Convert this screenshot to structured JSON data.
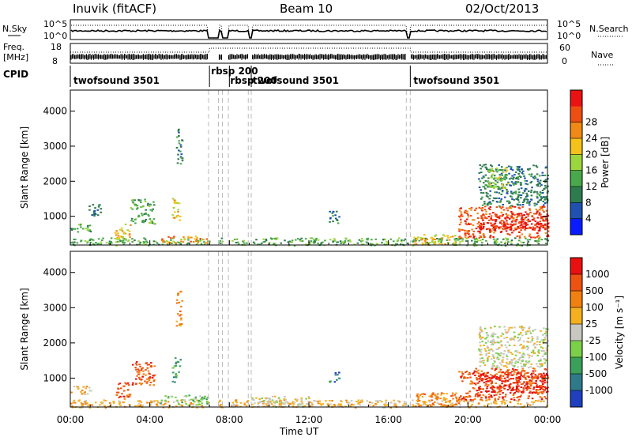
{
  "header": {
    "station": "Inuvik (fitACF)",
    "beam": "Beam 10",
    "date": "02/Oct/2013"
  },
  "strips": {
    "nsky_label": "N.Sky",
    "nsearch_label": "N.Search",
    "nsky_ticks": [
      "10^5",
      "10^0"
    ],
    "nsearch_ticks": [
      "10^5",
      "10^0"
    ],
    "freq_label": "Freq.",
    "freq_unit": "[MHz]",
    "freq_ticks": [
      "18",
      "8"
    ],
    "nave_label": "Nave",
    "nave_ticks": [
      "60",
      "0"
    ],
    "cpid_label": "CPID",
    "cpid_segments": [
      {
        "label": "twofsound 3501",
        "start_hour": 0.0,
        "end_hour": 7.0
      },
      {
        "label": "rbsp 200",
        "start_hour": 7.0,
        "end_hour": 8.0
      },
      {
        "label": "rbsp 200",
        "start_hour": 8.0,
        "end_hour": 9.1
      },
      {
        "label": "twofsound 3501",
        "start_hour": 9.1,
        "end_hour": 17.1
      },
      {
        "label": "twofsound 3501",
        "start_hour": 17.1,
        "end_hour": 24.0
      }
    ],
    "data_gaps_hours": [
      [
        6.95,
        7.45
      ],
      [
        7.65,
        7.95
      ],
      [
        8.95,
        9.1
      ],
      [
        16.9,
        17.1
      ]
    ]
  },
  "chart_data": [
    {
      "type": "heatmap",
      "title": "",
      "ylabel": "Slant Range [km]",
      "xlabel": "",
      "xlim": [
        0,
        24
      ],
      "ylim": [
        180,
        4600
      ],
      "yticks": [
        1000,
        2000,
        3000,
        4000
      ],
      "colorbar": {
        "label": "Power [dB]",
        "ticks": [
          "4",
          "8",
          "12",
          "16",
          "20",
          "24",
          "28"
        ],
        "colors": [
          "#0a1cff",
          "#1f52b0",
          "#2e7b4f",
          "#49a84b",
          "#9cd63d",
          "#f5c21b",
          "#f08a16",
          "#ee4e12",
          "#ea1212"
        ]
      },
      "echo_regions": [
        {
          "x": [
            0.0,
            1.0
          ],
          "range_km": [
            550,
            800
          ],
          "level": 3
        },
        {
          "x": [
            0.9,
            1.5
          ],
          "range_km": [
            1000,
            1400
          ],
          "level": 2
        },
        {
          "x": [
            2.2,
            3.0
          ],
          "range_km": [
            350,
            800
          ],
          "level": 5
        },
        {
          "x": [
            3.0,
            4.2
          ],
          "range_km": [
            800,
            1500
          ],
          "level": 3
        },
        {
          "x": [
            5.1,
            5.5
          ],
          "range_km": [
            900,
            1600
          ],
          "level": 5
        },
        {
          "x": [
            5.3,
            5.6
          ],
          "range_km": [
            2500,
            3500
          ],
          "level": 2
        },
        {
          "x": [
            0.0,
            24.0
          ],
          "range_km": [
            180,
            400
          ],
          "level": 3
        },
        {
          "x": [
            4.5,
            6.9
          ],
          "range_km": [
            250,
            450
          ],
          "level": 6
        },
        {
          "x": [
            13.0,
            13.5
          ],
          "range_km": [
            800,
            1200
          ],
          "level": 2
        },
        {
          "x": [
            17.2,
            19.5
          ],
          "range_km": [
            200,
            500
          ],
          "level": 5
        },
        {
          "x": [
            19.5,
            24.0
          ],
          "range_km": [
            400,
            1300
          ],
          "level": 7
        },
        {
          "x": [
            20.5,
            24.0
          ],
          "range_km": [
            600,
            1100
          ],
          "level": 8
        },
        {
          "x": [
            20.5,
            24.0
          ],
          "range_km": [
            1300,
            2500
          ],
          "level": 2
        },
        {
          "x": [
            21.0,
            22.0
          ],
          "range_km": [
            1800,
            2400
          ],
          "level": 4
        }
      ]
    },
    {
      "type": "heatmap",
      "title": "",
      "ylabel": "Slant Range [km]",
      "xlabel": "Time UT",
      "xlim": [
        0,
        24
      ],
      "ylim": [
        180,
        4600
      ],
      "xticks": [
        "00:00",
        "04:00",
        "08:00",
        "12:00",
        "16:00",
        "20:00",
        "00:00"
      ],
      "yticks": [
        1000,
        2000,
        3000,
        4000
      ],
      "colorbar": {
        "label": "Velocity [m s⁻¹]",
        "ticks": [
          "1000",
          "500",
          "100",
          "25",
          "-25",
          "-100",
          "-500",
          "-1000"
        ],
        "colors": [
          "#1f3fbf",
          "#2f7a8a",
          "#3aa05a",
          "#7bd04a",
          "#c8c8c0",
          "#f5b020",
          "#f28010",
          "#ee5210",
          "#ea1010"
        ]
      },
      "echo_regions": [
        {
          "x": [
            0.0,
            1.0
          ],
          "range_km": [
            550,
            800
          ],
          "level": 5
        },
        {
          "x": [
            2.2,
            3.0
          ],
          "range_km": [
            400,
            900
          ],
          "level": 7
        },
        {
          "x": [
            3.0,
            4.2
          ],
          "range_km": [
            800,
            1500
          ],
          "level": 7
        },
        {
          "x": [
            5.1,
            5.5
          ],
          "range_km": [
            900,
            1600
          ],
          "level": 2
        },
        {
          "x": [
            5.3,
            5.6
          ],
          "range_km": [
            2500,
            3500
          ],
          "level": 6
        },
        {
          "x": [
            0.0,
            24.0
          ],
          "range_km": [
            180,
            400
          ],
          "level": 5
        },
        {
          "x": [
            4.5,
            6.9
          ],
          "range_km": [
            250,
            550
          ],
          "level": 3
        },
        {
          "x": [
            9.0,
            12.0
          ],
          "range_km": [
            200,
            500
          ],
          "level": 4
        },
        {
          "x": [
            13.0,
            13.5
          ],
          "range_km": [
            900,
            1200
          ],
          "level": 1
        },
        {
          "x": [
            17.2,
            19.5
          ],
          "range_km": [
            200,
            600
          ],
          "level": 6
        },
        {
          "x": [
            19.5,
            24.0
          ],
          "range_km": [
            400,
            1300
          ],
          "level": 7
        },
        {
          "x": [
            20.5,
            24.0
          ],
          "range_km": [
            600,
            1200
          ],
          "level": 8
        },
        {
          "x": [
            20.5,
            24.0
          ],
          "range_km": [
            1300,
            2500
          ],
          "level": 4
        }
      ]
    }
  ]
}
